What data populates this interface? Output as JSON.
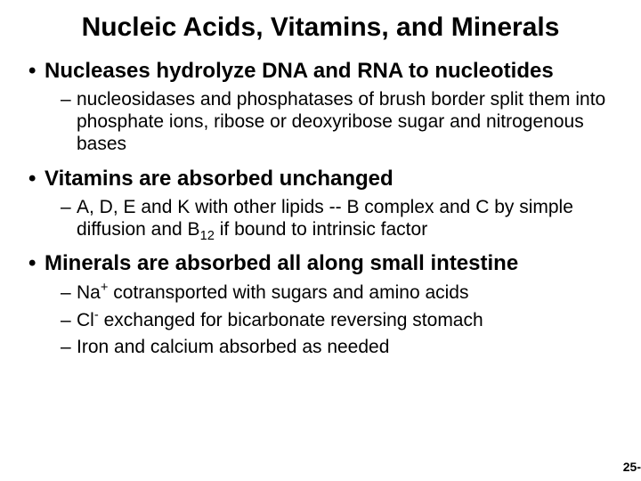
{
  "title": "Nucleic Acids, Vitamins, and Minerals",
  "b1": "Nucleases hydrolyze DNA and RNA to nucleotides",
  "b1s1": "nucleosidases and phosphatases of brush border split them into phosphate ions, ribose or deoxyribose sugar and nitrogenous bases",
  "b2": "Vitamins are absorbed unchanged",
  "b2s1_pre": "A, D, E and K with other lipids -- B complex and C by simple diffusion and B",
  "b2s1_sub": "12",
  "b2s1_post": " if bound to intrinsic factor",
  "b3": "Minerals are absorbed all along small intestine",
  "b3s1_pre": "Na",
  "b3s1_sup": "+",
  "b3s1_post": " cotransported with sugars and amino acids",
  "b3s2_pre": "Cl",
  "b3s2_sup": "-",
  "b3s2_post": " exchanged for bicarbonate reversing stomach",
  "b3s3": "Iron and calcium absorbed as needed",
  "pagenum": "25-",
  "colors": {
    "bg": "#ffffff",
    "text": "#000000"
  },
  "fonts": {
    "title_pt": 30,
    "l1_pt": 24,
    "l2_pt": 21,
    "pagenum_pt": 14
  }
}
